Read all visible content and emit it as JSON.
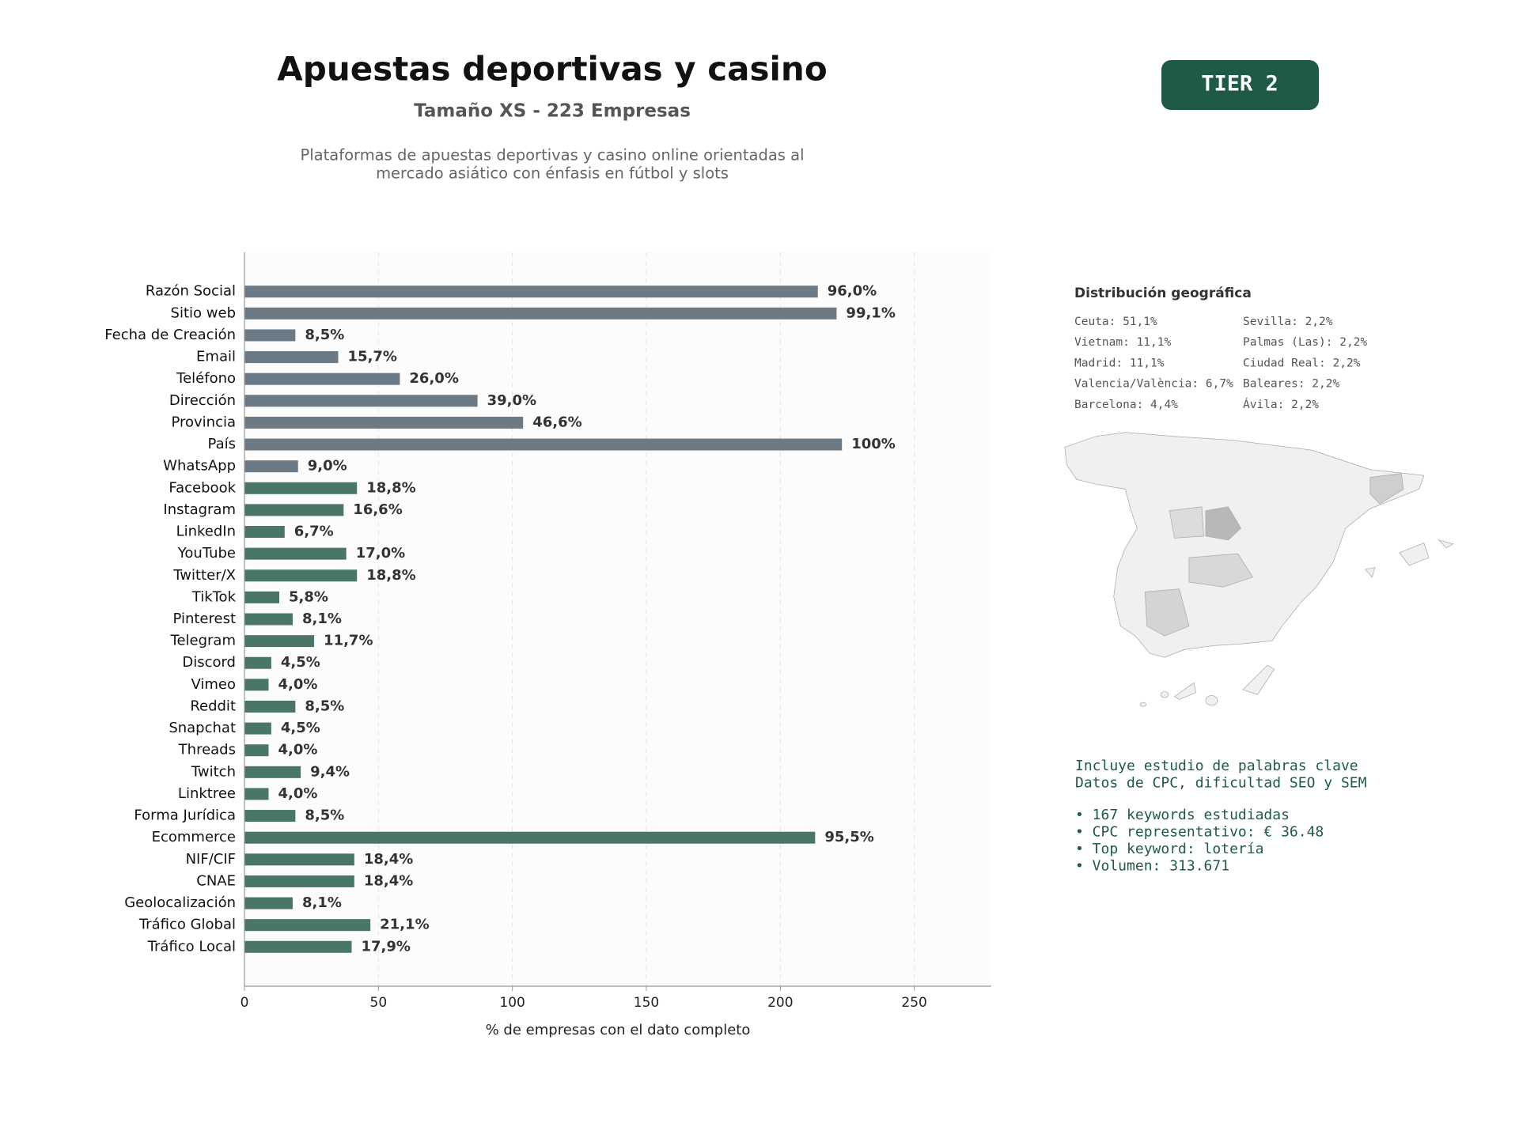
{
  "header": {
    "title": "Apuestas deportivas y casino",
    "subtitle": "Tamaño XS - 223 Empresas",
    "description": [
      "Plataformas de apuestas deportivas y casino online orientadas al",
      "mercado asiático con énfasis en fútbol y slots"
    ],
    "badge": "TIER 2"
  },
  "chart_data": {
    "type": "bar",
    "orientation": "horizontal",
    "categories": [
      "Razón Social",
      "Sitio web",
      "Fecha de Creación",
      "Email",
      "Teléfono",
      "Dirección",
      "Provincia",
      "País",
      "WhatsApp",
      "Facebook",
      "Instagram",
      "LinkedIn",
      "YouTube",
      "Twitter/X",
      "TikTok",
      "Pinterest",
      "Telegram",
      "Discord",
      "Vimeo",
      "Reddit",
      "Snapchat",
      "Threads",
      "Twitch",
      "Linktree",
      "Forma Jurídica",
      "Ecommerce",
      "NIF/CIF",
      "CNAE",
      "Geolocalización",
      "Tráfico Global",
      "Tráfico Local"
    ],
    "values": [
      214,
      221,
      19,
      35,
      58,
      87,
      104,
      223,
      20,
      42,
      37,
      15,
      38,
      42,
      13,
      18,
      26,
      10,
      9,
      19,
      10,
      9,
      21,
      9,
      19,
      213,
      41,
      41,
      18,
      47,
      40
    ],
    "value_labels": [
      "96,0%",
      "99,1%",
      "8,5%",
      "15,7%",
      "26,0%",
      "39,0%",
      "46,6%",
      "100%",
      "9,0%",
      "18,8%",
      "16,6%",
      "6,7%",
      "17,0%",
      "18,8%",
      "5,8%",
      "8,1%",
      "11,7%",
      "4,5%",
      "4,0%",
      "8,5%",
      "4,5%",
      "4,0%",
      "9,4%",
      "4,0%",
      "8,5%",
      "95,5%",
      "18,4%",
      "18,4%",
      "8,1%",
      "21,1%",
      "17,9%"
    ],
    "colors": [
      "#6c7a86",
      "#6c7a86",
      "#6c7a86",
      "#6c7a86",
      "#6c7a86",
      "#6c7a86",
      "#6c7a86",
      "#6c7a86",
      "#6c7a86",
      "#4a7765",
      "#4a7765",
      "#4a7765",
      "#4a7765",
      "#4a7765",
      "#4a7765",
      "#4a7765",
      "#4a7765",
      "#4a7765",
      "#4a7765",
      "#4a7765",
      "#4a7765",
      "#4a7765",
      "#4a7765",
      "#4a7765",
      "#4a7765",
      "#4a7765",
      "#4a7765",
      "#4a7765",
      "#4a7765",
      "#4a7765",
      "#4a7765"
    ],
    "xlabel": "% de empresas con el dato completo",
    "xlim": [
      0,
      278.75
    ],
    "xticks": [
      0,
      50,
      100,
      150,
      200,
      250
    ],
    "grid": true
  },
  "geo": {
    "title": "Distribución geográfica",
    "items": [
      "Ceuta: 51,1%",
      "Vietnam: 11,1%",
      "Madrid: 11,1%",
      "Valencia/València: 6,7%",
      "Barcelona: 4,4%",
      "Sevilla: 2,2%",
      "Palmas (Las): 2,2%",
      "Ciudad Real: 2,2%",
      "Baleares: 2,2%",
      "Ávila: 2,2%"
    ]
  },
  "keywords": {
    "lines": [
      "Incluye estudio de palabras clave",
      "Datos de CPC, dificultad SEO y SEM"
    ],
    "bullets": [
      "• 167 keywords estudiadas",
      "• CPC representativo: € 36.48",
      "• Top keyword: lotería",
      "• Volumen: 313.671"
    ]
  }
}
